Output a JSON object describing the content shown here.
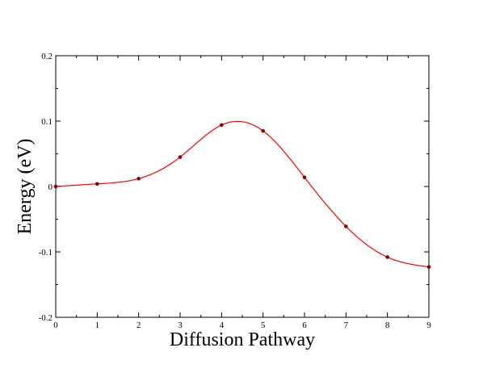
{
  "chart_data": {
    "type": "line",
    "title": "",
    "xlabel": "Diffusion Pathway",
    "ylabel": "Energy (eV)",
    "xlim": [
      0,
      9
    ],
    "ylim": [
      -0.2,
      0.2
    ],
    "x_ticks": [
      0,
      1,
      2,
      3,
      4,
      5,
      6,
      7,
      8,
      9
    ],
    "y_ticks": [
      -0.2,
      -0.1,
      0,
      0.1,
      0.2
    ],
    "x_tick_labels": [
      "0",
      "1",
      "2",
      "3",
      "4",
      "5",
      "6",
      "7",
      "8",
      "9"
    ],
    "y_tick_labels": [
      "-0.2",
      "-0.1",
      "0",
      "0.1",
      "0.2"
    ],
    "grid": false,
    "legend": "none",
    "smooth": true,
    "line_color": "#ff0000",
    "marker_color": "#8b0000",
    "series": [
      {
        "x": [
          0,
          1,
          2,
          3,
          4,
          5,
          6,
          7,
          8,
          9
        ],
        "values": [
          0.0,
          0.004,
          0.012,
          0.045,
          0.094,
          0.085,
          0.014,
          -0.061,
          -0.108,
          -0.123
        ]
      }
    ]
  }
}
